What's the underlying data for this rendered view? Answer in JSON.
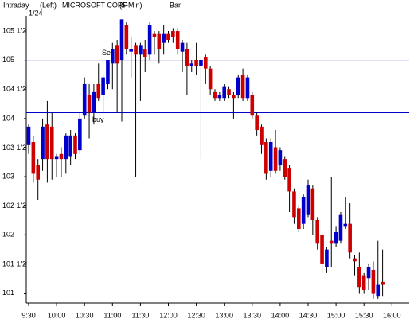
{
  "chart_data": {
    "type": "candlestick",
    "header": {
      "mode": "Intraday",
      "side": "(Left)",
      "title": "MICROSOFT CORP",
      "interval": "(5-Min)",
      "style": "Bar",
      "date": "1/24"
    },
    "categories": [
      "9:30",
      null,
      null,
      null,
      null,
      null,
      "10:00",
      null,
      null,
      null,
      null,
      null,
      "10:30",
      null,
      null,
      null,
      null,
      null,
      "11:00",
      null,
      null,
      null,
      null,
      null,
      "11:30",
      null,
      null,
      null,
      null,
      null,
      "12:00",
      null,
      null,
      null,
      null,
      null,
      "12:30",
      null,
      null,
      null,
      null,
      null,
      "13:00",
      null,
      null,
      null,
      null,
      null,
      "13:30",
      null,
      null,
      null,
      null,
      null,
      "14:00",
      null,
      null,
      null,
      null,
      null,
      "14:30",
      null,
      null,
      null,
      null,
      null,
      "15:00",
      null,
      null,
      null,
      null,
      null,
      "15:30",
      null,
      null,
      null,
      null,
      null,
      "16:00"
    ],
    "open": [
      103.55,
      103.6,
      103.2,
      103.3,
      103.9,
      103.85,
      103.3,
      103.4,
      103.3,
      103.35,
      103.7,
      103.45,
      104.05,
      104.4,
      104.1,
      104.6,
      104.4,
      104.6,
      104.95,
      105.25,
      105.0,
      105.6,
      105.15,
      105.25,
      105.1,
      105.2,
      105.1,
      105.45,
      105.45,
      105.3,
      105.45,
      105.5,
      105.5,
      105.15,
      105.2,
      104.9,
      105.0,
      104.9,
      105.05,
      104.85,
      104.45,
      104.35,
      104.35,
      104.5,
      104.4,
      104.4,
      104.75,
      104.35,
      104.4,
      104.05,
      103.85,
      103.6,
      103.1,
      103.5,
      103.2,
      103.3,
      103.15,
      102.75,
      102.45,
      102.2,
      102.35,
      102.8,
      102.25,
      102.0,
      101.45,
      101.9,
      101.85,
      101.9,
      102.15,
      102.2,
      101.6,
      101.45,
      101.3,
      101.25,
      101.4,
      100.95,
      101.2,
      null,
      null
    ],
    "high": [
      103.9,
      103.7,
      103.3,
      104.0,
      104.3,
      104.1,
      103.4,
      103.5,
      103.75,
      103.8,
      103.75,
      104.1,
      104.7,
      104.6,
      104.6,
      104.95,
      104.75,
      105.0,
      105.3,
      105.35,
      105.7,
      105.65,
      105.4,
      105.3,
      105.3,
      105.35,
      105.65,
      105.5,
      105.5,
      105.6,
      105.5,
      105.55,
      105.55,
      105.35,
      105.3,
      105.0,
      105.3,
      105.05,
      105.1,
      104.9,
      104.5,
      104.45,
      104.6,
      104.55,
      104.45,
      104.75,
      104.85,
      104.75,
      104.45,
      104.1,
      103.9,
      103.65,
      103.65,
      103.8,
      103.5,
      103.35,
      103.2,
      102.8,
      102.5,
      102.7,
      102.95,
      102.85,
      102.3,
      102.05,
      101.8,
      103.0,
      102.15,
      102.4,
      102.65,
      102.55,
      101.65,
      101.7,
      101.35,
      101.5,
      101.55,
      101.9,
      101.75,
      null,
      null
    ],
    "low": [
      103.4,
      102.9,
      102.6,
      103.1,
      102.9,
      102.95,
      103.0,
      103.0,
      103.05,
      103.2,
      103.3,
      103.4,
      104.0,
      103.65,
      103.9,
      104.3,
      104.1,
      104.5,
      104.5,
      104.1,
      103.95,
      105.1,
      104.7,
      103.0,
      104.3,
      104.8,
      105.0,
      105.1,
      104.95,
      105.1,
      105.3,
      105.3,
      105.1,
      104.8,
      104.4,
      104.8,
      104.75,
      103.3,
      104.6,
      104.4,
      104.3,
      104.3,
      104.3,
      104.35,
      104.0,
      104.35,
      104.3,
      104.3,
      104.0,
      103.7,
      103.4,
      102.95,
      103.0,
      103.05,
      103.1,
      102.95,
      102.4,
      102.2,
      102.05,
      102.1,
      102.3,
      102.0,
      101.75,
      101.35,
      101.35,
      101.45,
      101.8,
      101.85,
      102.1,
      101.6,
      101.3,
      101.0,
      101.0,
      101.05,
      100.9,
      100.9,
      100.95,
      null,
      null
    ],
    "close": [
      103.85,
      103.05,
      102.95,
      103.85,
      103.3,
      103.3,
      103.35,
      103.3,
      103.7,
      103.7,
      103.4,
      104.0,
      104.6,
      104.1,
      104.45,
      104.35,
      104.7,
      105.0,
      105.2,
      104.95,
      105.7,
      105.2,
      105.2,
      105.1,
      105.25,
      105.05,
      105.6,
      105.4,
      105.2,
      105.45,
      105.35,
      105.4,
      105.2,
      105.3,
      104.9,
      104.95,
      104.9,
      105.0,
      104.85,
      104.5,
      104.35,
      104.4,
      104.55,
      104.4,
      104.35,
      104.7,
      104.35,
      104.7,
      104.05,
      103.8,
      103.55,
      103.05,
      103.6,
      103.1,
      103.45,
      103.0,
      102.75,
      102.3,
      102.1,
      102.65,
      102.85,
      102.25,
      101.85,
      101.5,
      101.75,
      101.85,
      102.05,
      102.35,
      102.2,
      101.7,
      101.55,
      101.1,
      101.05,
      101.45,
      101.0,
      101.15,
      101.15,
      null,
      null
    ],
    "up_color": "#0000cc",
    "down_color": "#cc0000",
    "lines": [
      {
        "value": 105,
        "label": "Sell"
      },
      {
        "value": 104.1,
        "label": "buy"
      }
    ],
    "line_color": "#0000c8",
    "ylim": [
      100.83,
      105.76
    ],
    "yticks": [
      101,
      {
        "value": 101.5,
        "label": "101 1/2"
      },
      102,
      {
        "value": 102.5,
        "label": "102 1/2"
      },
      103,
      {
        "value": 103.5,
        "label": "103 1/2"
      },
      104,
      {
        "value": 104.5,
        "label": "104 1/2"
      },
      105,
      {
        "value": 105.5,
        "label": "105 1/2"
      }
    ]
  }
}
